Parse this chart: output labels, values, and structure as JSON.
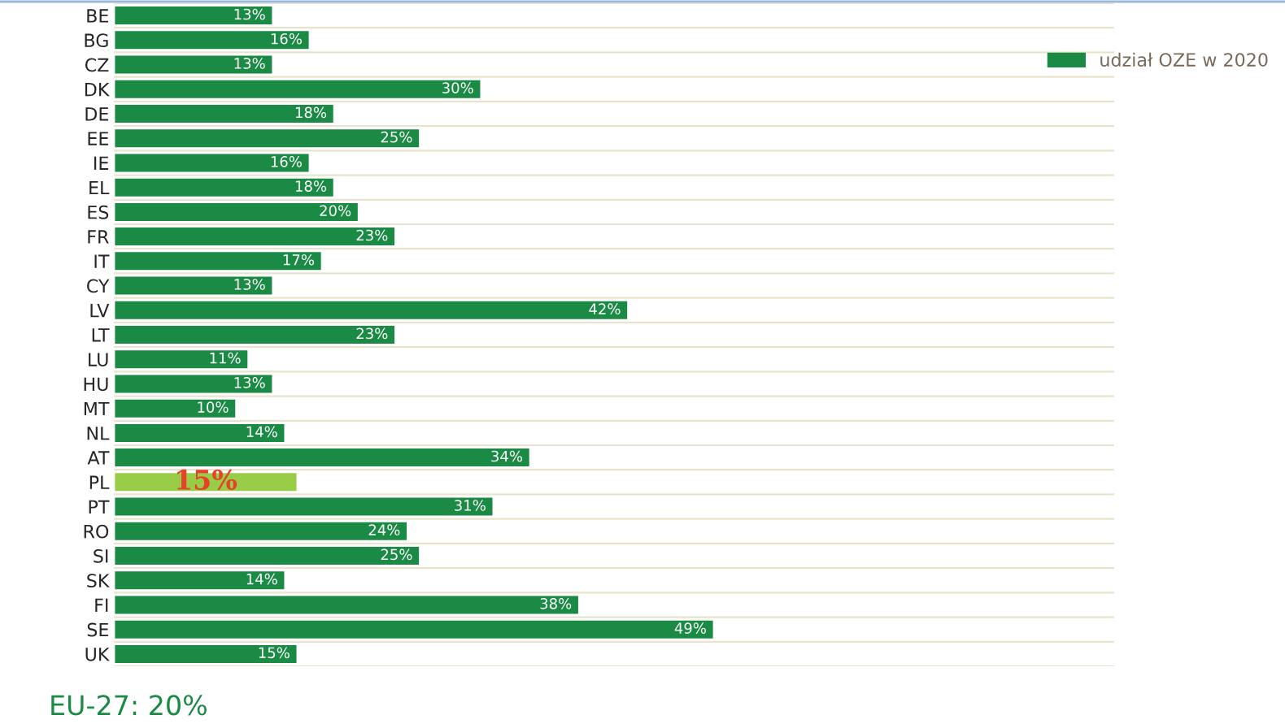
{
  "chart_data": {
    "type": "bar",
    "orientation": "horizontal",
    "categories": [
      "BE",
      "BG",
      "CZ",
      "DK",
      "DE",
      "EE",
      "IE",
      "EL",
      "ES",
      "FR",
      "IT",
      "CY",
      "LV",
      "LT",
      "LU",
      "HU",
      "MT",
      "NL",
      "AT",
      "PL",
      "PT",
      "RO",
      "SI",
      "SK",
      "FI",
      "SE",
      "UK"
    ],
    "series": [
      {
        "name": "udział OZE w 2020",
        "color": "#1a8a45",
        "values": [
          13,
          16,
          13,
          30,
          18,
          25,
          16,
          18,
          20,
          23,
          17,
          13,
          42,
          23,
          11,
          13,
          10,
          14,
          34,
          15,
          31,
          24,
          25,
          14,
          38,
          49,
          15
        ],
        "colors": [
          "#1a8a45",
          "#1a8a45",
          "#1a8a45",
          "#1a8a45",
          "#1a8a45",
          "#1a8a45",
          "#1a8a45",
          "#1a8a45",
          "#1a8a45",
          "#1a8a45",
          "#1a8a45",
          "#1a8a45",
          "#1a8a45",
          "#1a8a45",
          "#1a8a45",
          "#1a8a45",
          "#1a8a45",
          "#1a8a45",
          "#1a8a45",
          "#9acd47",
          "#1a8a45",
          "#1a8a45",
          "#1a8a45",
          "#1a8a45",
          "#1a8a45",
          "#1a8a45",
          "#1a8a45"
        ],
        "value_labels": [
          "13%",
          "16%",
          "13%",
          "30%",
          "18%",
          "25%",
          "16%",
          "18%",
          "20%",
          "23%",
          "17%",
          "13%",
          "42%",
          "23%",
          "11%",
          "13%",
          "10%",
          "14%",
          "34%",
          "15%",
          "31%",
          "24%",
          "25%",
          "14%",
          "38%",
          "49%",
          "15%"
        ]
      }
    ],
    "legend": "top right",
    "grid": "y",
    "annotations": [
      "EU-27: 20%"
    ]
  }
}
